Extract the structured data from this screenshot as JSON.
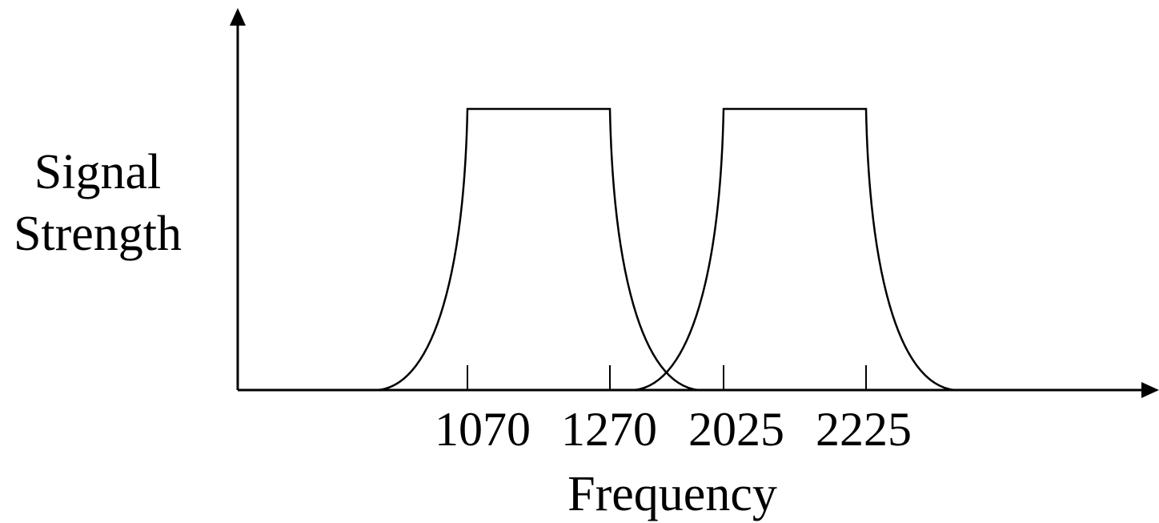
{
  "diagram": {
    "y_axis_label_line1": "Signal",
    "y_axis_label_line2": "Strength",
    "x_axis_label": "Frequency",
    "ticks": [
      "1070",
      "1270",
      "2025",
      "2225"
    ],
    "bands": [
      {
        "low": "1070",
        "high": "1270"
      },
      {
        "low": "2025",
        "high": "2225"
      }
    ],
    "colors": {
      "line": "#000000",
      "background": "#ffffff"
    }
  }
}
